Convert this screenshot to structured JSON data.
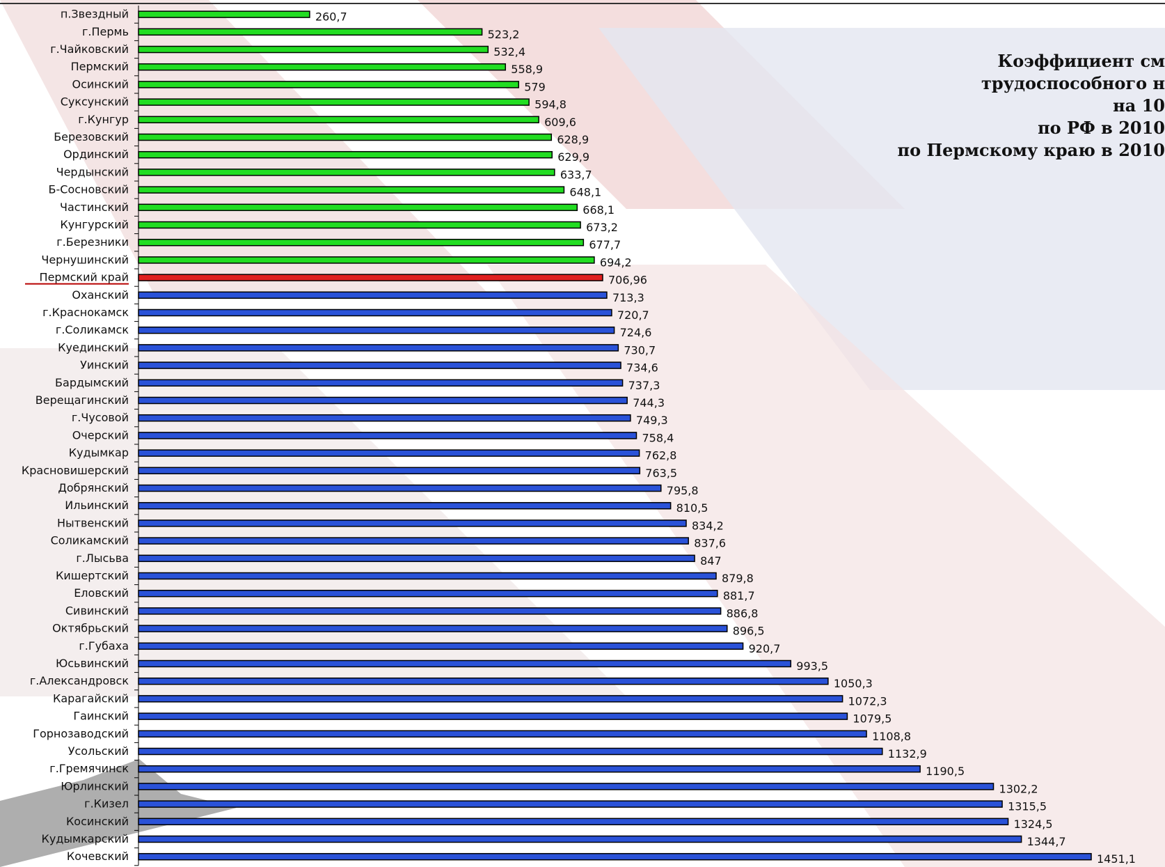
{
  "chart_data": {
    "type": "bar",
    "orientation": "horizontal",
    "title_lines": [
      "Коэффициент см",
      "трудоспособного н",
      "на 10",
      "по РФ в 2010",
      "по Пермскому краю в 2010"
    ],
    "categories": [
      "п.Звездный",
      "г.Пермь",
      "г.Чайковский",
      "Пермский",
      "Осинский",
      "Суксунский",
      "г.Кунгур",
      "Березовский",
      "Ординский",
      "Чердынский",
      "Б-Сосновский",
      "Частинский",
      "Кунгурский",
      "г.Березники",
      "Чернушинский",
      "Пермский край",
      "Оханский",
      "г.Краснокамск",
      "г.Соликамск",
      "Куединский",
      "Уинский",
      "Бардымский",
      "Верещагинский",
      "г.Чусовой",
      "Очерский",
      "Кудымкар",
      "Красновишерский",
      "Добрянский",
      "Ильинский",
      "Нытвенский",
      "Соликамский",
      "г.Лысьва",
      "Кишертский",
      "Еловский",
      "Сивинский",
      "Октябрьский",
      "г.Губаха",
      "Юсьвинский",
      "г.Александровск",
      "Карагайский",
      "Гаинский",
      "Горнозаводский",
      "Усольский",
      "г.Гремячинск",
      "Юрлинский",
      "г.Кизел",
      "Косинский",
      "Кудымкарский",
      "Кочевский"
    ],
    "values": [
      260.7,
      523.2,
      532.4,
      558.9,
      579,
      594.8,
      609.6,
      628.9,
      629.9,
      633.7,
      648.1,
      668.1,
      673.2,
      677.7,
      694.2,
      706.96,
      713.3,
      720.7,
      724.6,
      730.7,
      734.6,
      737.3,
      744.3,
      749.3,
      758.4,
      762.8,
      763.5,
      795.8,
      810.5,
      834.2,
      837.6,
      847,
      879.8,
      881.7,
      886.8,
      896.5,
      920.7,
      993.5,
      1050.3,
      1072.3,
      1079.5,
      1108.8,
      1132.9,
      1190.5,
      1302.2,
      1315.5,
      1324.5,
      1344.7,
      1451.1
    ],
    "value_labels": [
      "260,7",
      "523,2",
      "532,4",
      "558,9",
      "579",
      "594,8",
      "609,6",
      "628,9",
      "629,9",
      "633,7",
      "648,1",
      "668,1",
      "673,2",
      "677,7",
      "694,2",
      "706,96",
      "713,3",
      "720,7",
      "724,6",
      "730,7",
      "734,6",
      "737,3",
      "744,3",
      "749,3",
      "758,4",
      "762,8",
      "763,5",
      "795,8",
      "810,5",
      "834,2",
      "837,6",
      "847",
      "879,8",
      "881,7",
      "886,8",
      "896,5",
      "920,7",
      "993,5",
      "1050,3",
      "1072,3",
      "1079,5",
      "1108,8",
      "1132,9",
      "1190,5",
      "1302,2",
      "1315,5",
      "1324,5",
      "1344,7",
      "1451,1"
    ],
    "highlight_category": "Пермский край",
    "colors": {
      "below_region": "#22dd22",
      "region": "#e02020",
      "above_region": "#2a52d8",
      "bar_outline": "#000000"
    },
    "xlim": [
      0,
      1451.1
    ],
    "grid": false,
    "legend": "none"
  }
}
